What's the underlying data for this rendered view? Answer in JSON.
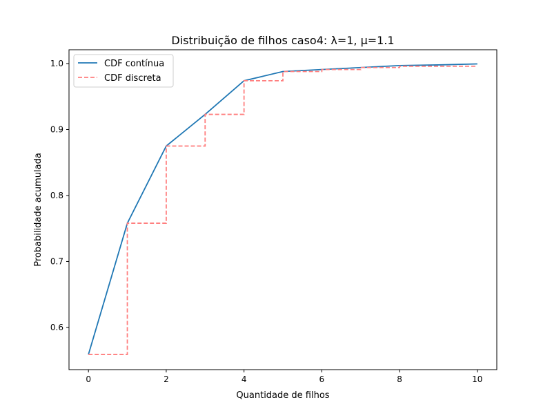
{
  "chart_data": {
    "type": "line",
    "title": "Distribuição de filhos caso4: λ=1, μ=1.1",
    "xlabel": "Quantidade de filhos",
    "ylabel": "Probabilidade acumulada",
    "xlim": [
      -0.5,
      10.5
    ],
    "ylim": [
      0.536,
      1.021
    ],
    "xticks": [
      0,
      2,
      4,
      6,
      8,
      10
    ],
    "yticks": [
      0.6,
      0.7,
      0.8,
      0.9,
      1.0
    ],
    "xtick_labels": [
      "0",
      "2",
      "4",
      "6",
      "8",
      "10"
    ],
    "ytick_labels": [
      "0.6",
      "0.7",
      "0.8",
      "0.9",
      "1.0"
    ],
    "grid": false,
    "legend_position": "top-left",
    "series": [
      {
        "name": "CDF contínua",
        "style": "solid",
        "color": "#1f77b4",
        "x": [
          0,
          1,
          2,
          3,
          4,
          5,
          6,
          7,
          8,
          9,
          10
        ],
        "y": [
          0.559,
          0.758,
          0.875,
          0.923,
          0.974,
          0.988,
          0.991,
          0.994,
          0.997,
          0.998,
          0.9995
        ]
      },
      {
        "name": "CDF discreta",
        "style": "dashed-step",
        "color": "#ff7f7f",
        "x": [
          0,
          1,
          2,
          3,
          4,
          5,
          6,
          7,
          8,
          9,
          10
        ],
        "y": [
          0.559,
          0.758,
          0.875,
          0.923,
          0.974,
          0.988,
          0.991,
          0.994,
          0.996,
          0.996,
          0.996
        ]
      }
    ]
  }
}
